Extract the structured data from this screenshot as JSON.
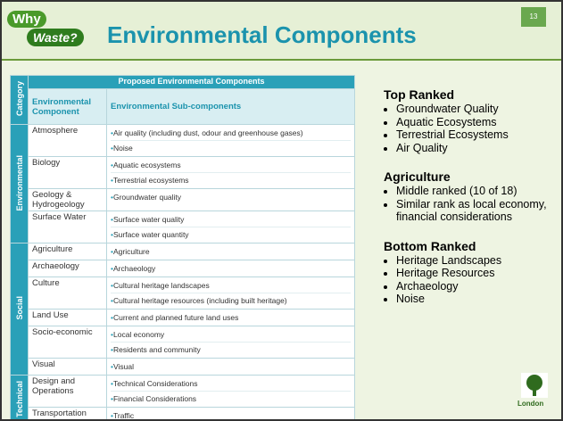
{
  "header": {
    "logo": [
      "Why",
      "Waste?"
    ],
    "title": "Environmental Components",
    "slide_number": "13"
  },
  "table": {
    "title": "Proposed Environmental Components",
    "headers": [
      "Category",
      "Environmental Component",
      "Environmental Sub-components"
    ],
    "groups": [
      {
        "category": "Environmental",
        "rows": [
          {
            "component": "Atmosphere",
            "subcomponents": [
              "Air quality (including dust, odour and greenhouse gases)",
              "Noise"
            ]
          },
          {
            "component": "Biology",
            "subcomponents": [
              "Aquatic ecosystems",
              "Terrestrial ecosystems"
            ]
          },
          {
            "component": "Geology & Hydrogeology",
            "subcomponents": [
              "Groundwater quality"
            ]
          },
          {
            "component": "Surface Water",
            "subcomponents": [
              "Surface water quality",
              "Surface water quantity"
            ]
          }
        ]
      },
      {
        "category": "Social",
        "rows": [
          {
            "component": "Agriculture",
            "subcomponents": [
              "Agriculture"
            ]
          },
          {
            "component": "Archaeology",
            "subcomponents": [
              "Archaeology"
            ]
          },
          {
            "component": "Culture",
            "subcomponents": [
              "Cultural heritage landscapes",
              "Cultural heritage resources (including built heritage)"
            ]
          },
          {
            "component": "Land Use",
            "subcomponents": [
              "Current and planned future land uses"
            ]
          },
          {
            "component": "Socio-economic",
            "subcomponents": [
              "Local economy",
              "Residents and community"
            ]
          },
          {
            "component": "Visual",
            "subcomponents": [
              "Visual"
            ]
          }
        ]
      },
      {
        "category": "Technical",
        "rows": [
          {
            "component": "Design and Operations",
            "subcomponents": [
              "Technical Considerations",
              "Financial Considerations"
            ]
          },
          {
            "component": "Transportation",
            "subcomponents": [
              "Traffic"
            ]
          }
        ]
      }
    ]
  },
  "notes": [
    {
      "heading": "Top Ranked",
      "bullets": [
        "Groundwater Quality",
        "Aquatic Ecosystems",
        "Terrestrial Ecosystems",
        "Air Quality"
      ]
    },
    {
      "heading": "Agriculture",
      "bullets": [
        "Middle ranked (10 of 18)",
        "Similar rank as local economy, financial considerations"
      ]
    },
    {
      "heading": "Bottom Ranked",
      "bullets": [
        "Heritage Landscapes",
        "Heritage Resources",
        "Archaeology",
        "Noise"
      ]
    }
  ],
  "footer": {
    "logo_text": "London"
  }
}
